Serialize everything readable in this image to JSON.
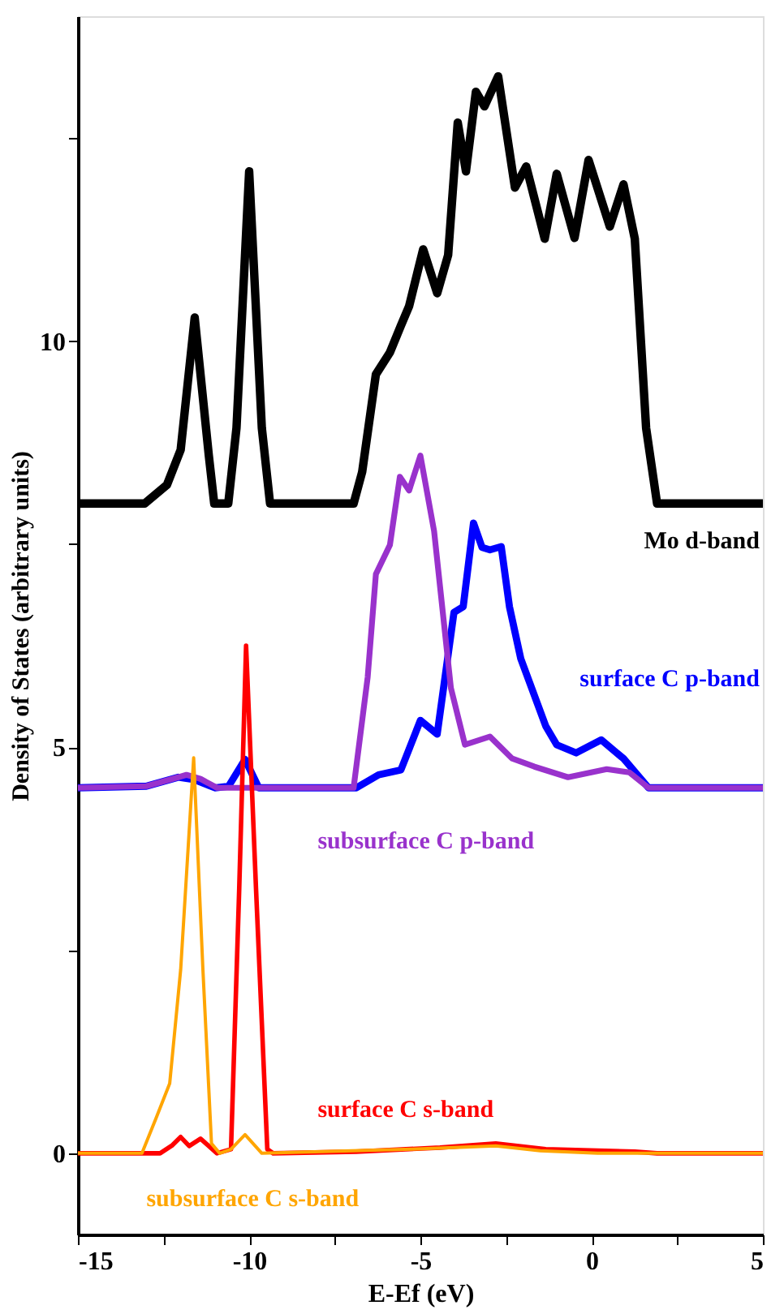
{
  "chart_data": {
    "type": "line",
    "xlabel": "E-Ef (eV)",
    "ylabel": "Density of States (arbitrary units)",
    "xlim": [
      -15,
      5
    ],
    "ylim": [
      -1,
      14
    ],
    "xticks": [
      -15,
      {
        "value": -12.5,
        "label": null
      },
      -10,
      {
        "value": -7.5,
        "label": null
      },
      -5,
      {
        "value": -2.5,
        "label": null
      },
      0,
      {
        "value": 2.5,
        "label": null
      },
      5
    ],
    "yticks": [
      0,
      {
        "value": 2.5,
        "label": null
      },
      5,
      {
        "value": 7.5,
        "label": null
      },
      10,
      {
        "value": 12.5,
        "label": null
      }
    ],
    "grid": false,
    "legend": false,
    "marker": "none",
    "line_style": "solid",
    "series": [
      {
        "name": "Mo d-band",
        "color": "#000000",
        "x": [
          -15,
          -13.05,
          -12.4,
          -12.0,
          -11.59,
          -11.18,
          -11.02,
          -10.61,
          -10.37,
          -10.0,
          -9.63,
          -9.39,
          -6.95,
          -6.7,
          -6.3,
          -5.89,
          -5.57,
          -5.33,
          -4.92,
          -4.51,
          -4.19,
          -3.91,
          -3.67,
          -3.38,
          -3.13,
          -2.73,
          -2.24,
          -1.91,
          -1.37,
          -1.02,
          -0.5,
          -0.09,
          0.53,
          0.93,
          1.26,
          1.59,
          1.91,
          5
        ],
        "values": [
          8,
          8,
          8.23,
          8.66,
          10.29,
          8.6,
          8,
          8,
          8.93,
          12.09,
          8.93,
          8,
          8,
          8.39,
          9.59,
          9.86,
          10.19,
          10.43,
          11.13,
          10.59,
          11.06,
          12.69,
          12.09,
          13.07,
          12.89,
          13.26,
          11.89,
          12.15,
          11.26,
          12.06,
          11.27,
          12.23,
          11.41,
          11.93,
          11.26,
          8.93,
          8,
          8
        ]
      },
      {
        "name": "surface C p-band",
        "color": "#0000ff",
        "x": [
          -15,
          -13.0,
          -12.07,
          -11.6,
          -11.0,
          -10.6,
          -10.12,
          -9.72,
          -6.87,
          -6.22,
          -5.57,
          -5.0,
          -4.51,
          -4.02,
          -3.75,
          -3.45,
          -3.2,
          -2.97,
          -2.64,
          -2.4,
          -2.07,
          -1.34,
          -1.02,
          -0.45,
          0.28,
          0.93,
          1.66,
          5
        ],
        "values": [
          4.5,
          4.52,
          4.63,
          4.6,
          4.5,
          4.52,
          4.85,
          4.5,
          4.5,
          4.66,
          4.72,
          5.33,
          5.16,
          6.66,
          6.73,
          7.76,
          7.46,
          7.43,
          7.47,
          6.73,
          6.09,
          5.26,
          5.03,
          4.93,
          5.09,
          4.86,
          4.5,
          4.5
        ]
      },
      {
        "name": "subsurface C p-band",
        "color": "#9932cc",
        "x": [
          -15,
          -13.0,
          -12.07,
          -11.83,
          -11.42,
          -10.94,
          -6.95,
          -6.54,
          -6.3,
          -5.89,
          -5.6,
          -5.33,
          -5.0,
          -4.6,
          -4.11,
          -3.7,
          -2.97,
          -2.32,
          -1.67,
          -0.69,
          0.44,
          1.1,
          1.66,
          5
        ],
        "values": [
          4.5,
          4.52,
          4.63,
          4.66,
          4.61,
          4.5,
          4.5,
          5.86,
          7.13,
          7.49,
          8.33,
          8.16,
          8.59,
          7.66,
          5.73,
          5.03,
          5.13,
          4.86,
          4.76,
          4.63,
          4.73,
          4.69,
          4.5,
          4.5
        ]
      },
      {
        "name": "surface C s-band",
        "color": "#ff0000",
        "x": [
          -15,
          -12.6,
          -12.24,
          -12.0,
          -11.75,
          -11.42,
          -10.94,
          -10.53,
          -10.29,
          -10.09,
          -9.8,
          -9.47,
          -9.3,
          -6.87,
          -4.43,
          -2.8,
          -1.34,
          1.26,
          1.91,
          5
        ],
        "values": [
          0,
          0,
          0.1,
          0.2,
          0.09,
          0.18,
          0,
          0.05,
          3.26,
          6.25,
          3.26,
          0.05,
          0,
          0.02,
          0.07,
          0.12,
          0.05,
          0.02,
          0,
          0
        ]
      },
      {
        "name": "subsurface C s-band",
        "color": "#ffa500",
        "x": [
          -15,
          -13.13,
          -12.72,
          -12.32,
          -12.0,
          -11.62,
          -11.35,
          -11.1,
          -10.86,
          -10.53,
          -10.12,
          -9.63,
          -5.24,
          -2.8,
          -1.5,
          0.17,
          5
        ],
        "values": [
          0,
          0,
          0.43,
          0.86,
          2.26,
          4.87,
          2.26,
          0.12,
          0,
          0.05,
          0.23,
          0,
          0.05,
          0.09,
          0.03,
          0,
          0
        ]
      }
    ]
  }
}
